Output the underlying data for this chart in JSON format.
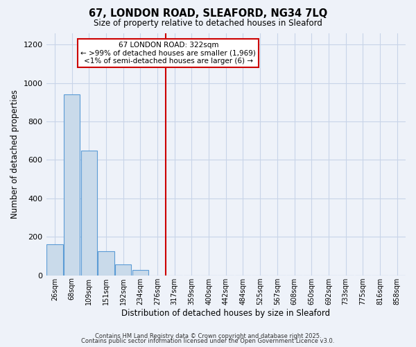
{
  "title": "67, LONDON ROAD, SLEAFORD, NG34 7LQ",
  "subtitle": "Size of property relative to detached houses in Sleaford",
  "xlabel": "Distribution of detached houses by size in Sleaford",
  "ylabel": "Number of detached properties",
  "bar_labels": [
    "26sqm",
    "68sqm",
    "109sqm",
    "151sqm",
    "192sqm",
    "234sqm",
    "276sqm",
    "317sqm",
    "359sqm",
    "400sqm",
    "442sqm",
    "484sqm",
    "525sqm",
    "567sqm",
    "608sqm",
    "650sqm",
    "692sqm",
    "733sqm",
    "775sqm",
    "816sqm",
    "858sqm"
  ],
  "bar_heights": [
    160,
    940,
    650,
    125,
    58,
    28,
    0,
    0,
    0,
    0,
    0,
    0,
    0,
    0,
    0,
    0,
    0,
    0,
    0,
    0,
    0
  ],
  "bar_color": "#c9daea",
  "bar_edgecolor": "#5b9bd5",
  "vline_index": 6.5,
  "vline_color": "#cc0000",
  "annotation_title": "67 LONDON ROAD: 322sqm",
  "annotation_line1": "← >99% of detached houses are smaller (1,969)",
  "annotation_line2": "<1% of semi-detached houses are larger (6) →",
  "ylim": [
    0,
    1260
  ],
  "yticks": [
    0,
    200,
    400,
    600,
    800,
    1000,
    1200
  ],
  "bg_color": "#eef2f9",
  "grid_color": "#c8d4e8",
  "footer1": "Contains HM Land Registry data © Crown copyright and database right 2025.",
  "footer2": "Contains public sector information licensed under the Open Government Licence v3.0."
}
